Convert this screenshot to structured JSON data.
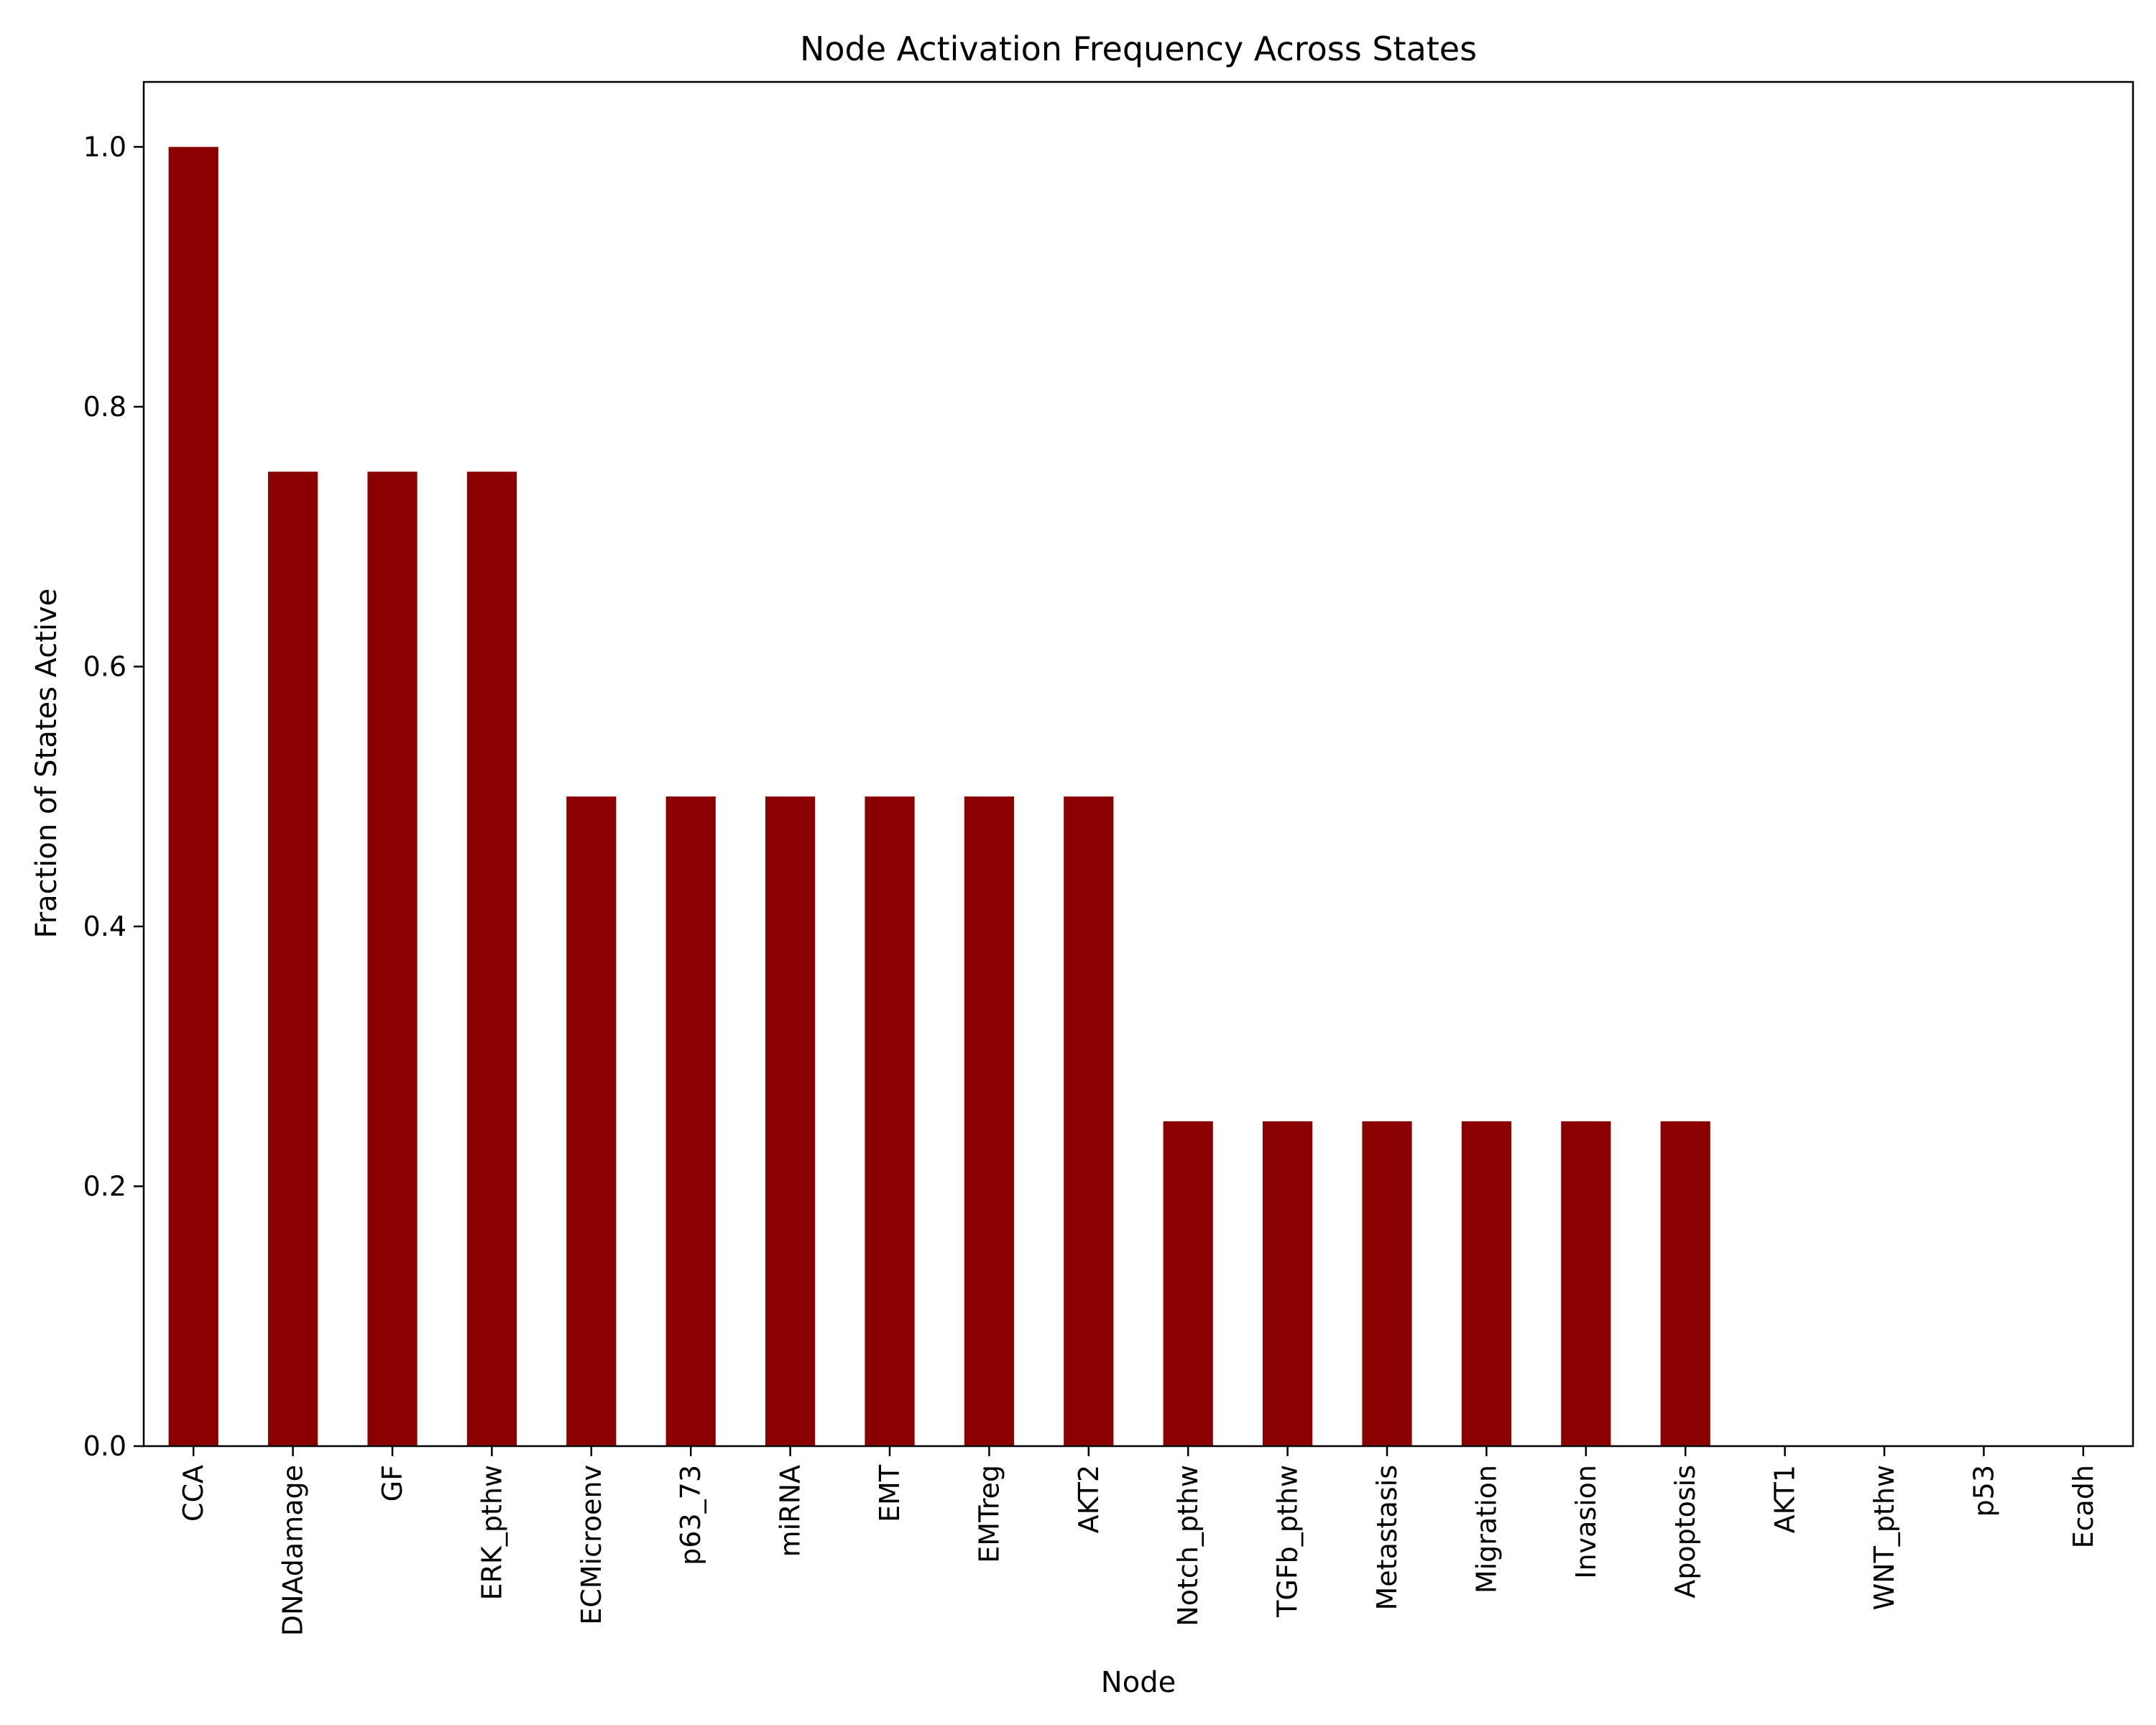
{
  "chart_data": {
    "type": "bar",
    "title": "Node Activation Frequency Across States",
    "xlabel": "Node",
    "ylabel": "Fraction of States Active",
    "categories": [
      "CCA",
      "DNAdamage",
      "GF",
      "ERK_pthw",
      "ECMicroenv",
      "p63_73",
      "miRNA",
      "EMT",
      "EMTreg",
      "AKT2",
      "Notch_pthw",
      "TGFb_pthw",
      "Metastasis",
      "Migration",
      "Invasion",
      "Apoptosis",
      "AKT1",
      "WNT_pthw",
      "p53",
      "Ecadh"
    ],
    "values": [
      1.0,
      0.75,
      0.75,
      0.75,
      0.5,
      0.5,
      0.5,
      0.5,
      0.5,
      0.5,
      0.25,
      0.25,
      0.25,
      0.25,
      0.25,
      0.25,
      0.0,
      0.0,
      0.0,
      0.0
    ],
    "ylim": [
      0,
      1.05
    ],
    "yticks": [
      0.0,
      0.2,
      0.4,
      0.6,
      0.8,
      1.0
    ],
    "ytick_labels": [
      "0.0",
      "0.2",
      "0.4",
      "0.6",
      "0.8",
      "1.0"
    ],
    "grid": false,
    "legend": "none",
    "bar_color": "#8b0000"
  }
}
